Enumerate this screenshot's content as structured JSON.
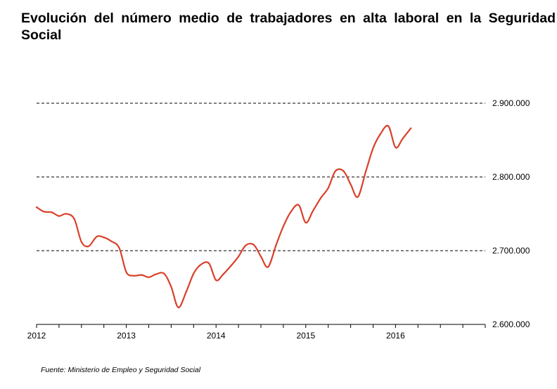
{
  "title": "Evolución del número medio de trabajadores en alta laboral en la Seguridad Social",
  "source": "Fuente: Ministerio de Empleo y Seguridad Social",
  "chart_data": {
    "type": "line",
    "title": "Evolución del número medio de trabajadores en alta laboral en la Seguridad Social",
    "xlabel": "",
    "ylabel": "",
    "xlim": [
      2012.0,
      2017.0
    ],
    "ylim": [
      2600000,
      2900000
    ],
    "x_ticks": [
      {
        "value": 2012,
        "label": "2012"
      },
      {
        "value": 2013,
        "label": "2013"
      },
      {
        "value": 2014,
        "label": "2014"
      },
      {
        "value": 2015,
        "label": "2015"
      },
      {
        "value": 2016,
        "label": "2016"
      }
    ],
    "y_ticks": [
      {
        "value": 2600000,
        "label": "2.600.000"
      },
      {
        "value": 2700000,
        "label": "2.700.000"
      },
      {
        "value": 2800000,
        "label": "2.800.000"
      },
      {
        "value": 2900000,
        "label": "2.900.000"
      }
    ],
    "grid": "horizontal dashed at y ticks",
    "line_color": "#d9402b",
    "series": [
      {
        "x": [
          2012.0,
          2012.08,
          2012.17,
          2012.25,
          2012.33,
          2012.42,
          2012.5,
          2012.58,
          2012.67,
          2012.75,
          2012.83,
          2012.92,
          2013.0,
          2013.08,
          2013.17,
          2013.25,
          2013.33,
          2013.42,
          2013.5,
          2013.58,
          2013.67,
          2013.75,
          2013.83,
          2013.92,
          2014.0,
          2014.08,
          2014.17,
          2014.25,
          2014.33,
          2014.42,
          2014.5,
          2014.58,
          2014.67,
          2014.75,
          2014.83,
          2014.92,
          2015.0,
          2015.08,
          2015.17,
          2015.25,
          2015.33,
          2015.42,
          2015.5,
          2015.58,
          2015.67,
          2015.75,
          2015.83,
          2015.92,
          2016.0,
          2016.08,
          2016.17
        ],
        "values": [
          2759000,
          2753000,
          2752000,
          2747000,
          2750000,
          2743000,
          2712000,
          2706000,
          2719000,
          2718000,
          2713000,
          2704000,
          2671000,
          2666000,
          2667000,
          2664000,
          2668000,
          2669000,
          2651000,
          2623000,
          2645000,
          2669000,
          2681000,
          2683000,
          2660000,
          2668000,
          2680000,
          2692000,
          2707000,
          2708000,
          2692000,
          2678000,
          2708000,
          2733000,
          2752000,
          2762000,
          2738000,
          2754000,
          2772000,
          2785000,
          2808000,
          2808000,
          2790000,
          2773000,
          2808000,
          2839000,
          2858000,
          2869000,
          2840000,
          2852000,
          2866000
        ]
      }
    ]
  }
}
